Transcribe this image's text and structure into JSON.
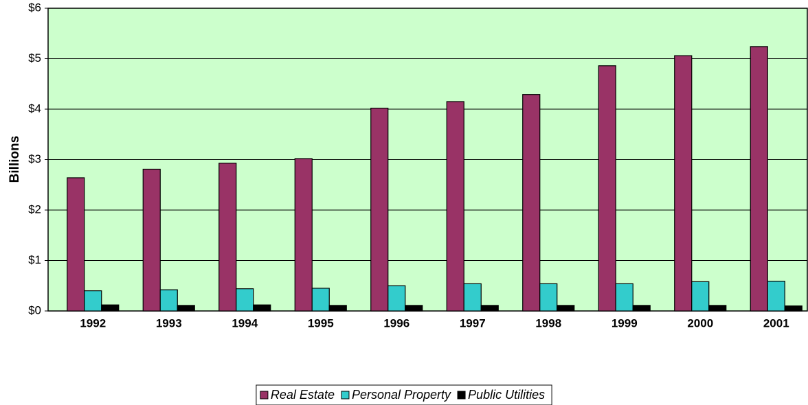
{
  "chart_data": {
    "type": "bar",
    "y_label": "Billions",
    "categories": [
      "1992",
      "1993",
      "1994",
      "1995",
      "1996",
      "1997",
      "1998",
      "1999",
      "2000",
      "2001"
    ],
    "series": [
      {
        "name": "Real Estate",
        "color": "#993366",
        "values": [
          2.64,
          2.81,
          2.93,
          3.02,
          4.02,
          4.15,
          4.29,
          4.86,
          5.06,
          5.24
        ]
      },
      {
        "name": "Personal Property",
        "color": "#33cccc",
        "values": [
          0.4,
          0.42,
          0.44,
          0.45,
          0.5,
          0.54,
          0.54,
          0.54,
          0.58,
          0.59
        ]
      },
      {
        "name": "Public Utilities",
        "color": "#000000",
        "values": [
          0.12,
          0.11,
          0.12,
          0.11,
          0.11,
          0.11,
          0.11,
          0.11,
          0.11,
          0.1
        ]
      }
    ],
    "ylim": [
      0,
      6
    ],
    "yticks": [
      {
        "value": 0,
        "label": "$0"
      },
      {
        "value": 1,
        "label": "$1"
      },
      {
        "value": 2,
        "label": "$2"
      },
      {
        "value": 3,
        "label": "$3"
      },
      {
        "value": 4,
        "label": "$4"
      },
      {
        "value": 5,
        "label": "$5"
      },
      {
        "value": 6,
        "label": "$6"
      }
    ],
    "grid": true,
    "plot_background": "#ccffcc"
  }
}
